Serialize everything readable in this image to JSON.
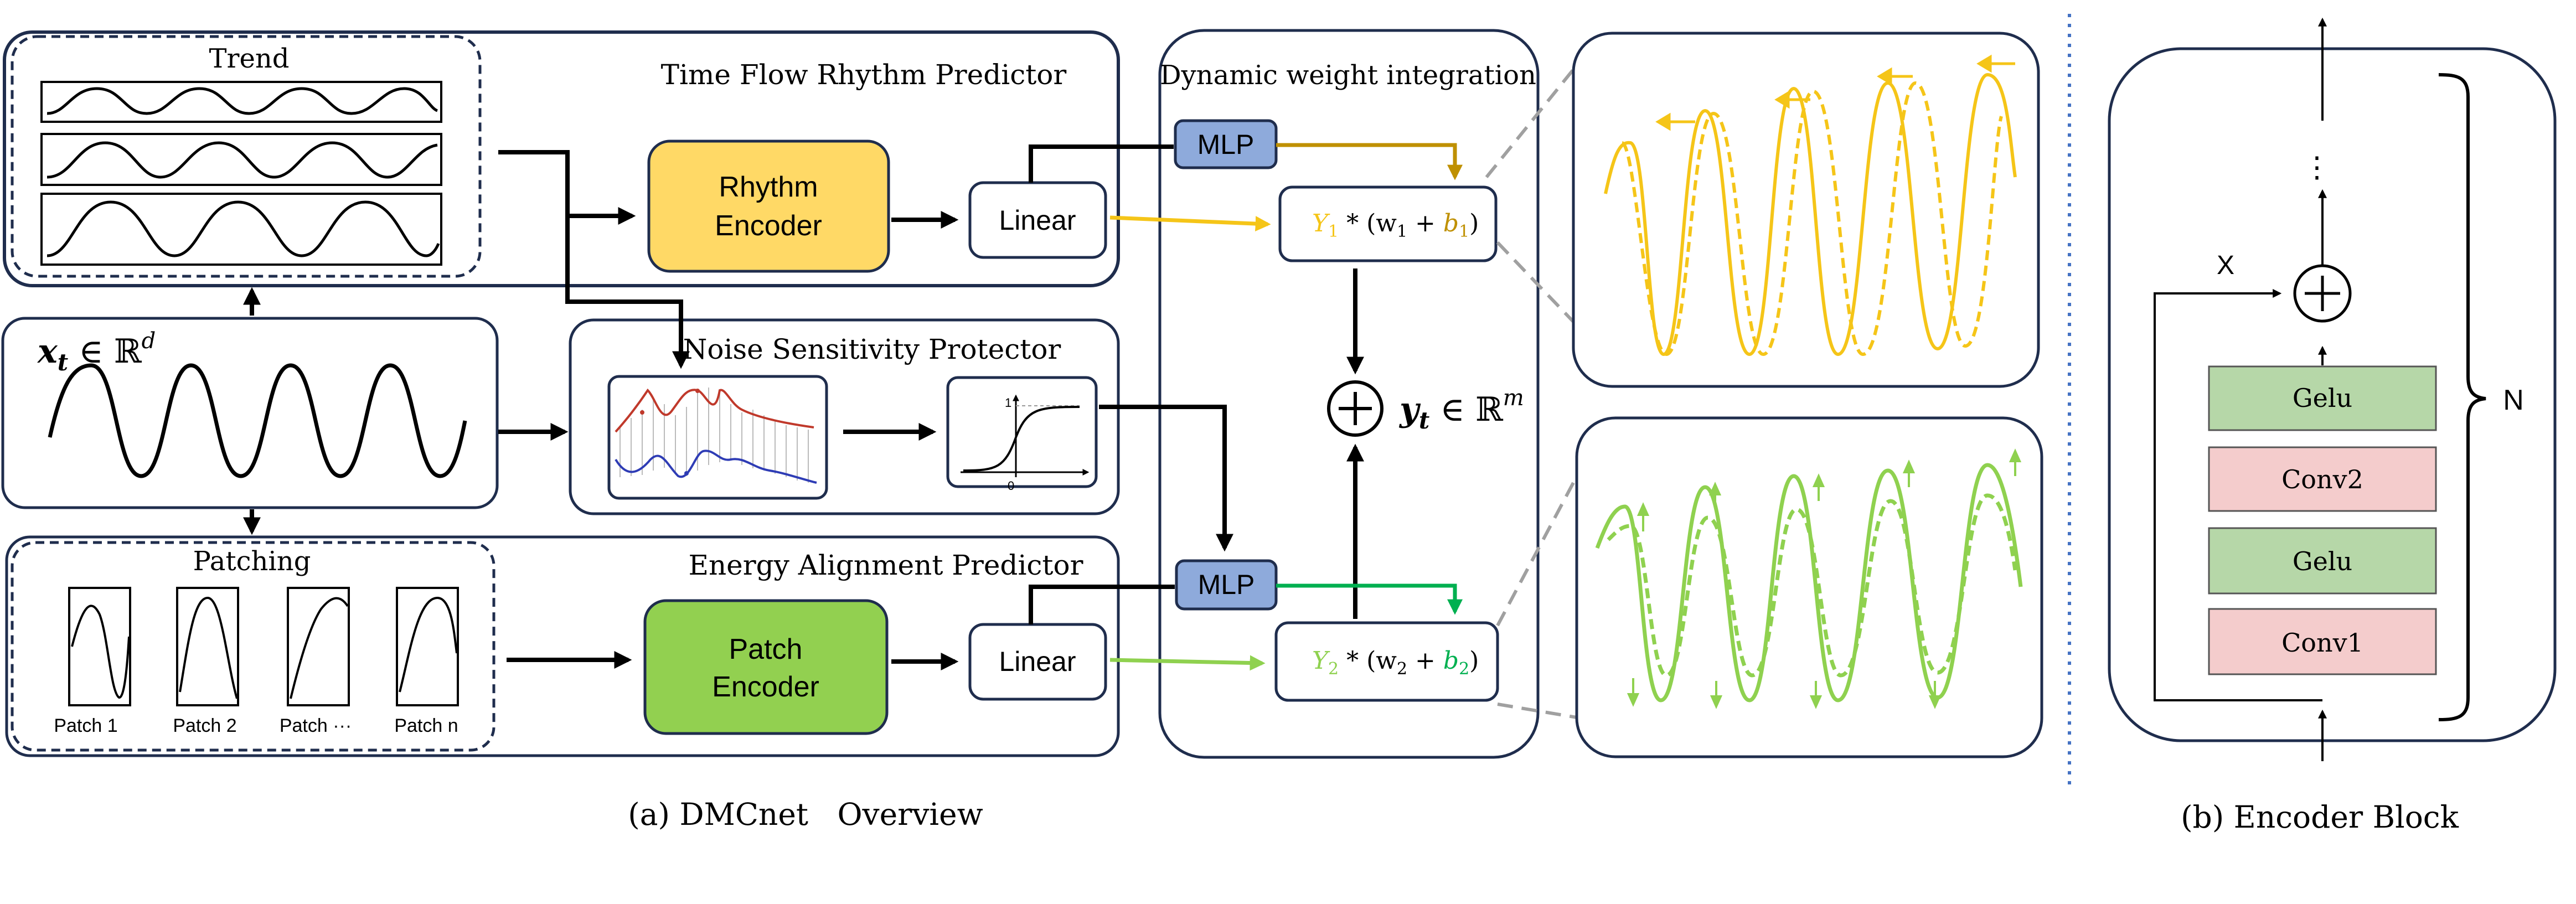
{
  "overview": {
    "caption": "(a) DMCnet   Overview",
    "trend_label": "Trend",
    "time_flow_title": "Time Flow Rhythm Predictor",
    "rhythm_encoder_line1": "Rhythm",
    "rhythm_encoder_line2": "Encoder",
    "linear_label_top": "Linear",
    "mlp_label_top": "MLP",
    "dynamic_title": "Dynamic weight integration",
    "formula_top": {
      "Y": "Y",
      "sub": "1",
      "mid": " * (w",
      "b": "b",
      "close": ")"
    },
    "formula_bottom": {
      "Y": "Y",
      "sub": "2",
      "mid": " * (w",
      "b": "b",
      "close": ")"
    },
    "input_var": "x",
    "input_sub": "t",
    "input_in": " ∈ ℝ",
    "input_sup": "d",
    "noise_title": "Noise Sensitivity Protector",
    "sigmoid_one": "1",
    "sigmoid_zero": "0",
    "output_var": "y",
    "output_sub": "t",
    "output_in": " ∈ ℝ",
    "output_sup": "m",
    "patching_label": "Patching",
    "energy_title": "Energy Alignment Predictor",
    "patch_encoder_line1": "Patch",
    "patch_encoder_line2": "Encoder",
    "linear_label_bottom": "Linear",
    "mlp_label_bottom": "MLP",
    "patches": [
      "Patch 1",
      "Patch 2",
      "Patch ···",
      "Patch n"
    ]
  },
  "encoder_block": {
    "caption": "(b) Encoder Block",
    "layers": [
      "Gelu",
      "Conv2",
      "Gelu",
      "Conv1"
    ],
    "x_label": "X",
    "n_label": "N",
    "dots": "⋮"
  },
  "colors": {
    "outline": "#1f2d4d",
    "rhythm_fill": "#ffd966",
    "patch_fill": "#92d050",
    "mlp_fill": "#8eaadb",
    "yellow": "#f5c518",
    "dark_yellow": "#bf9000",
    "light_green": "#8fd14f",
    "green": "#00b050",
    "gelu_fill": "#b6d7a8",
    "conv_fill": "#f4cccc",
    "separator": "#4472c4"
  }
}
